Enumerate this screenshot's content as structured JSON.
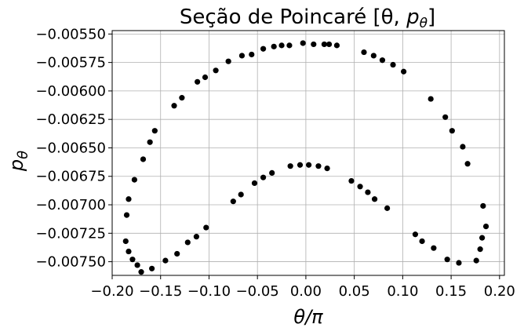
{
  "chart_data": {
    "type": "scatter",
    "title": "Seção de Poincaré [θ, p_θ]",
    "xlabel": "θ/π",
    "ylabel": "p_θ",
    "xlim": [
      -0.2,
      0.205
    ],
    "ylim": [
      -0.00762,
      -0.00547
    ],
    "grid": true,
    "x_ticks": [
      -0.2,
      -0.15,
      -0.1,
      -0.05,
      0.0,
      0.05,
      0.1,
      0.15,
      0.2
    ],
    "x_tick_labels": [
      "−0.20",
      "−0.15",
      "−0.10",
      "−0.05",
      "0.00",
      "0.05",
      "0.10",
      "0.15",
      "0.20"
    ],
    "y_ticks": [
      -0.0055,
      -0.00575,
      -0.006,
      -0.00625,
      -0.0065,
      -0.00675,
      -0.007,
      -0.00725,
      -0.0075
    ],
    "y_tick_labels": [
      "−0.00550",
      "−0.00575",
      "−0.00600",
      "−0.00625",
      "−0.00650",
      "−0.00675",
      "−0.00700",
      "−0.00725",
      "−0.00750"
    ],
    "series": [
      {
        "color": "#000000",
        "points": [
          [
            -0.186,
            -0.00732
          ],
          [
            -0.183,
            -0.00741
          ],
          [
            -0.179,
            -0.00748
          ],
          [
            -0.174,
            -0.00753
          ],
          [
            -0.17,
            -0.00759
          ],
          [
            -0.159,
            -0.00756
          ],
          [
            -0.145,
            -0.00749
          ],
          [
            -0.133,
            -0.00743
          ],
          [
            -0.122,
            -0.00733
          ],
          [
            -0.113,
            -0.00728
          ],
          [
            -0.103,
            -0.0072
          ],
          [
            -0.075,
            -0.00697
          ],
          [
            -0.067,
            -0.00691
          ],
          [
            -0.053,
            -0.00681
          ],
          [
            -0.044,
            -0.00676
          ],
          [
            -0.035,
            -0.00672
          ],
          [
            -0.016,
            -0.00666
          ],
          [
            -0.006,
            -0.00665
          ],
          [
            0.003,
            -0.00665
          ],
          [
            0.013,
            -0.00666
          ],
          [
            0.022,
            -0.00668
          ],
          [
            0.047,
            -0.00679
          ],
          [
            0.056,
            -0.00684
          ],
          [
            0.064,
            -0.00689
          ],
          [
            0.071,
            -0.00695
          ],
          [
            0.084,
            -0.00703
          ],
          [
            0.113,
            -0.00726
          ],
          [
            0.12,
            -0.00732
          ],
          [
            0.132,
            -0.00738
          ],
          [
            0.146,
            -0.00748
          ],
          [
            0.158,
            -0.00751
          ],
          [
            0.176,
            -0.00749
          ],
          [
            0.18,
            -0.00739
          ],
          [
            0.182,
            -0.00729
          ],
          [
            0.186,
            -0.00719
          ],
          [
            0.183,
            -0.00701
          ],
          [
            -0.185,
            -0.00709
          ],
          [
            -0.183,
            -0.00695
          ],
          [
            -0.177,
            -0.00678
          ],
          [
            -0.168,
            -0.0066
          ],
          [
            -0.161,
            -0.00645
          ],
          [
            -0.156,
            -0.00635
          ],
          [
            -0.136,
            -0.00613
          ],
          [
            -0.128,
            -0.00606
          ],
          [
            -0.112,
            -0.00592
          ],
          [
            -0.104,
            -0.00588
          ],
          [
            -0.093,
            -0.00582
          ],
          [
            -0.08,
            -0.00574
          ],
          [
            -0.066,
            -0.00569
          ],
          [
            -0.056,
            -0.00568
          ],
          [
            -0.044,
            -0.00563
          ],
          [
            -0.033,
            -0.00561
          ],
          [
            -0.025,
            -0.0056
          ],
          [
            -0.017,
            -0.0056
          ],
          [
            -0.003,
            -0.00558
          ],
          [
            0.008,
            -0.00559
          ],
          [
            0.019,
            -0.00559
          ],
          [
            0.024,
            -0.00559
          ],
          [
            0.032,
            -0.0056
          ],
          [
            0.06,
            -0.00566
          ],
          [
            0.07,
            -0.00569
          ],
          [
            0.079,
            -0.00573
          ],
          [
            0.09,
            -0.00577
          ],
          [
            0.101,
            -0.00583
          ],
          [
            0.129,
            -0.00607
          ],
          [
            0.144,
            -0.00623
          ],
          [
            0.151,
            -0.00635
          ],
          [
            0.162,
            -0.00649
          ],
          [
            0.167,
            -0.00664
          ]
        ]
      }
    ]
  }
}
